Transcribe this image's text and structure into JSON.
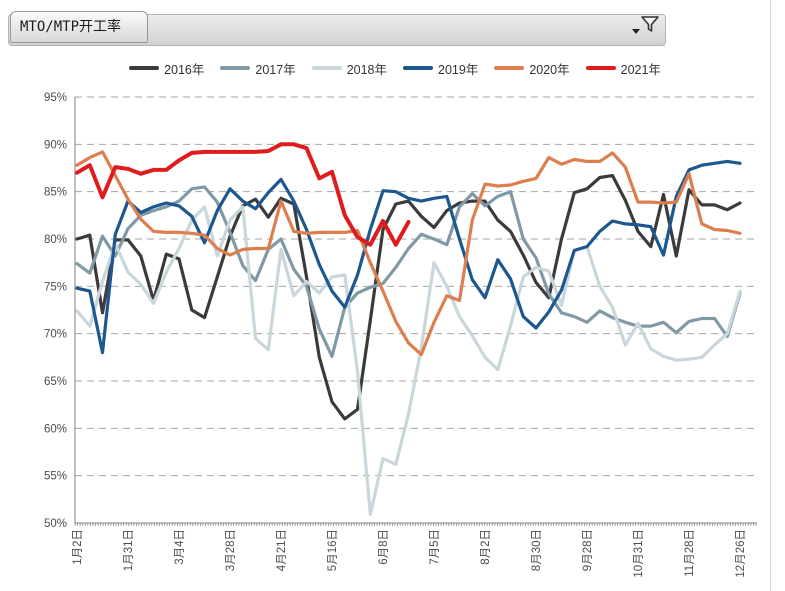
{
  "header": {
    "tab_title": "MTO/MTP开工率"
  },
  "legend": [
    {
      "label": "2016年",
      "color": "#3b3b3b"
    },
    {
      "label": "2017年",
      "color": "#7f9aa6"
    },
    {
      "label": "2018年",
      "color": "#c9d6dc"
    },
    {
      "label": "2019年",
      "color": "#1d578f"
    },
    {
      "label": "2020年",
      "color": "#dd7e4f"
    },
    {
      "label": "2021年",
      "color": "#e01b1e"
    }
  ],
  "chart_data": {
    "type": "line",
    "title": "MTO/MTP开工率",
    "ylabel": "",
    "xlabel": "",
    "ylim": [
      50,
      95
    ],
    "y_tick_step": 5,
    "y_tick_format": "percent",
    "grid": "dashed-horizontal",
    "legend_position": "top",
    "n_points": 53,
    "x_labels": [
      "1月2日",
      "1月31日",
      "3月4日",
      "3月28日",
      "4月21日",
      "5月16日",
      "6月8日",
      "7月5日",
      "8月2日",
      "8月30日",
      "9月28日",
      "10月31日",
      "11月28日",
      "12月26日"
    ],
    "x_label_every_n_points": 4,
    "series": [
      {
        "name": "2016年",
        "color": "#3b3b3b",
        "values": [
          80.0,
          80.4,
          72.2,
          79.9,
          79.9,
          78.2,
          73.5,
          78.4,
          77.9,
          72.5,
          71.7,
          76.0,
          80.3,
          83.5,
          84.2,
          82.3,
          84.3,
          83.7,
          76.0,
          67.5,
          62.8,
          61.0,
          62.0,
          71.4,
          81.0,
          83.7,
          84.0,
          82.4,
          81.2,
          83.0,
          83.8,
          84.0,
          84.0,
          82.0,
          80.8,
          78.3,
          75.4,
          73.8,
          80.0,
          84.9,
          85.3,
          86.5,
          86.7,
          84.1,
          80.8,
          79.2,
          84.7,
          78.2,
          85.2,
          83.6,
          83.6,
          83.1,
          83.8
        ]
      },
      {
        "name": "2017年",
        "color": "#7f9aa6",
        "values": [
          77.4,
          76.4,
          80.3,
          78.2,
          81.1,
          82.5,
          83.0,
          83.4,
          84.0,
          85.3,
          85.5,
          83.9,
          80.7,
          77.2,
          75.6,
          78.9,
          80.0,
          76.8,
          75.0,
          70.5,
          67.6,
          72.8,
          74.3,
          74.9,
          75.3,
          77.0,
          79.0,
          80.5,
          80.0,
          79.4,
          83.4,
          84.8,
          83.5,
          84.5,
          85.0,
          80.0,
          78.0,
          74.2,
          72.2,
          71.8,
          71.2,
          72.4,
          71.7,
          71.2,
          70.8,
          70.8,
          71.2,
          70.1,
          71.3,
          71.6,
          71.6,
          69.7,
          74.3
        ]
      },
      {
        "name": "2018年",
        "color": "#c9d6dc",
        "values": [
          72.4,
          70.8,
          75.5,
          79.5,
          76.5,
          75.2,
          73.2,
          76.5,
          79.0,
          82.0,
          83.4,
          78.2,
          82.0,
          83.4,
          69.5,
          68.3,
          78.9,
          74.0,
          75.5,
          74.3,
          76.0,
          76.2,
          66.0,
          50.9,
          56.8,
          56.2,
          61.5,
          68.5,
          77.5,
          75.0,
          71.8,
          69.8,
          67.5,
          66.2,
          70.8,
          76.0,
          77.0,
          76.6,
          73.0,
          78.8,
          79.2,
          75.0,
          72.8,
          68.8,
          71.1,
          68.4,
          67.6,
          67.2,
          67.3,
          67.5,
          68.8,
          70.0,
          74.5
        ]
      },
      {
        "name": "2019年",
        "color": "#1d578f",
        "values": [
          74.8,
          74.5,
          68.0,
          80.5,
          84.0,
          82.8,
          83.4,
          83.8,
          83.5,
          82.4,
          79.6,
          83.0,
          85.3,
          84.0,
          83.2,
          84.9,
          86.3,
          84.0,
          81.0,
          77.3,
          74.5,
          72.8,
          76.2,
          81.0,
          85.1,
          85.0,
          84.3,
          84.0,
          84.3,
          84.5,
          80.0,
          75.7,
          73.8,
          77.8,
          75.8,
          71.8,
          70.6,
          72.3,
          74.6,
          78.8,
          79.2,
          80.8,
          81.9,
          81.6,
          81.5,
          81.3,
          78.3,
          84.5,
          87.3,
          87.8,
          88.0,
          88.2,
          88.0
        ]
      },
      {
        "name": "2020年",
        "color": "#dd7e4f",
        "values": [
          87.8,
          88.6,
          89.2,
          86.7,
          84.2,
          82.1,
          80.8,
          80.7,
          80.7,
          80.6,
          80.4,
          79.0,
          78.3,
          78.9,
          79.0,
          79.0,
          84.0,
          80.8,
          80.6,
          80.7,
          80.7,
          80.7,
          80.9,
          77.5,
          74.5,
          71.3,
          69.0,
          67.8,
          71.2,
          74.0,
          73.5,
          82.0,
          85.8,
          85.6,
          85.7,
          86.1,
          86.4,
          88.6,
          87.9,
          88.4,
          88.2,
          88.2,
          89.1,
          87.6,
          83.9,
          83.9,
          83.8,
          83.9,
          86.9,
          81.6,
          81.0,
          80.9,
          80.6
        ]
      },
      {
        "name": "2021年",
        "color": "#e01b1e",
        "values": [
          87.0,
          87.8,
          84.4,
          87.6,
          87.4,
          86.9,
          87.3,
          87.3,
          88.3,
          89.1,
          89.2,
          89.2,
          89.2,
          89.2,
          89.2,
          89.3,
          90.0,
          90.0,
          89.6,
          86.4,
          87.1,
          82.5,
          80.2,
          79.4,
          81.9,
          79.4,
          81.8,
          null,
          null,
          null,
          null,
          null,
          null,
          null,
          null,
          null,
          null,
          null,
          null,
          null,
          null,
          null,
          null,
          null,
          null,
          null,
          null,
          null,
          null,
          null,
          null,
          null,
          null
        ]
      }
    ]
  }
}
